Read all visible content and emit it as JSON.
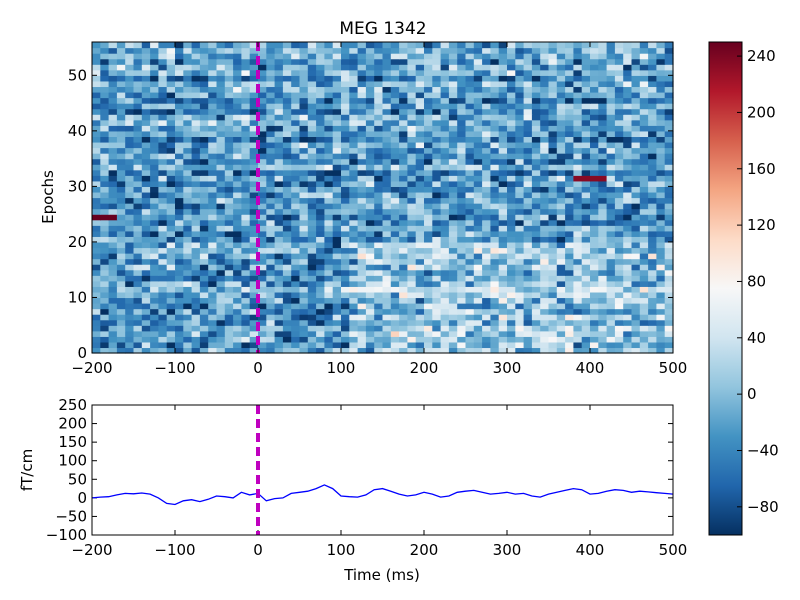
{
  "chart_data": [
    {
      "type": "heatmap",
      "title": "MEG 1342",
      "xlabel": "",
      "ylabel": "Epochs",
      "xlim": [
        -200,
        500
      ],
      "ylim": [
        0,
        56
      ],
      "x_ticks": [
        -200,
        -100,
        0,
        100,
        200,
        300,
        400,
        500
      ],
      "y_ticks": [
        0,
        10,
        20,
        30,
        40,
        50
      ],
      "n_epochs": 56,
      "n_times": 70,
      "event_marker_x": 0,
      "event_marker_color": "#bf00bf",
      "colormap": "RdBu_r",
      "value_range": [
        -100,
        250
      ],
      "colorbar_ticks": [
        240,
        200,
        160,
        120,
        80,
        40,
        0,
        -40,
        -80
      ],
      "highlights": [
        {
          "epoch": 24,
          "time": -195,
          "value": 250
        },
        {
          "epoch": 31,
          "time": 395,
          "value": 235
        }
      ]
    },
    {
      "type": "line",
      "title": "",
      "xlabel": "Time (ms)",
      "ylabel": "fT/cm",
      "xlim": [
        -200,
        500
      ],
      "ylim": [
        -100,
        250
      ],
      "x_ticks": [
        -200,
        -100,
        0,
        100,
        200,
        300,
        400,
        500
      ],
      "y_ticks": [
        250,
        200,
        150,
        100,
        50,
        0,
        -50,
        -100
      ],
      "line_color": "#0000ff",
      "event_marker_x": 0,
      "series": [
        {
          "x": [
            -200,
            -190,
            -180,
            -170,
            -160,
            -150,
            -140,
            -130,
            -120,
            -110,
            -100,
            -90,
            -80,
            -70,
            -60,
            -50,
            -40,
            -30,
            -20,
            -10,
            0,
            10,
            20,
            30,
            40,
            50,
            60,
            70,
            80,
            90,
            100,
            110,
            120,
            130,
            140,
            150,
            160,
            170,
            180,
            190,
            200,
            210,
            220,
            230,
            240,
            250,
            260,
            270,
            280,
            290,
            300,
            310,
            320,
            330,
            340,
            350,
            360,
            370,
            380,
            390,
            400,
            410,
            420,
            430,
            440,
            450,
            460,
            470,
            480,
            490,
            500
          ],
          "values": [
            0,
            2,
            3,
            8,
            12,
            11,
            13,
            10,
            0,
            -15,
            -18,
            -8,
            -5,
            -10,
            -4,
            5,
            3,
            0,
            15,
            8,
            12,
            -8,
            -2,
            0,
            12,
            15,
            18,
            25,
            35,
            25,
            5,
            3,
            2,
            8,
            22,
            25,
            18,
            10,
            5,
            8,
            15,
            10,
            2,
            5,
            15,
            18,
            20,
            15,
            10,
            12,
            15,
            10,
            12,
            5,
            2,
            10,
            15,
            20,
            25,
            22,
            10,
            12,
            18,
            22,
            20,
            15,
            18,
            16,
            14,
            12,
            10
          ]
        }
      ]
    }
  ]
}
